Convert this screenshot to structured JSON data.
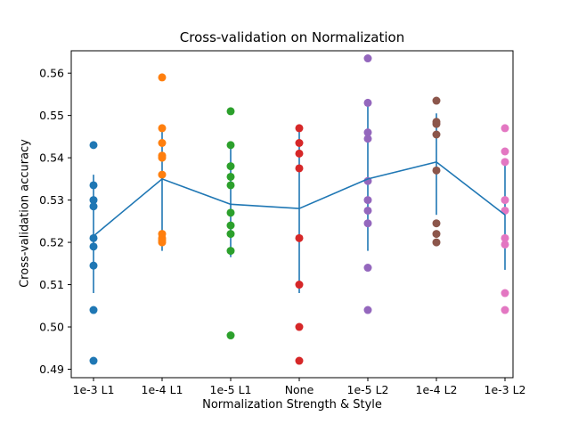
{
  "figure": {
    "title": "Cross-validation on Normalization",
    "xlabel": "Normalization Strength & Style",
    "ylabel": "Cross-validation accuracy"
  },
  "chart_data": {
    "type": "scatter",
    "title": "Cross-validation on Normalization",
    "xlabel": "Normalization Strength & Style",
    "ylabel": "Cross-validation accuracy",
    "grid": false,
    "legend": "none",
    "ylim": [
      0.488,
      0.5653
    ],
    "y_ticks": [
      0.49,
      0.5,
      0.51,
      0.52,
      0.53,
      0.54,
      0.55,
      0.56
    ],
    "categories": [
      "1e-3 L1",
      "1e-4 L1",
      "1e-5 L1",
      "None",
      "1e-5 L2",
      "1e-4 L2",
      "1e-3 L2"
    ],
    "line_color": "#1f77b4",
    "series": [
      {
        "name": "1e-3 L1",
        "color": "#1f77b4",
        "mean": 0.5215,
        "err_low": 0.508,
        "err_high": 0.536,
        "points": [
          0.543,
          0.5335,
          0.53,
          0.5285,
          0.521,
          0.519,
          0.5145,
          0.504,
          0.492
        ]
      },
      {
        "name": "1e-4 L1",
        "color": "#ff7f0e",
        "mean": 0.535,
        "err_low": 0.518,
        "err_high": 0.547,
        "points": [
          0.559,
          0.547,
          0.5435,
          0.5405,
          0.54,
          0.536,
          0.522,
          0.521,
          0.5205,
          0.52
        ]
      },
      {
        "name": "1e-5 L1",
        "color": "#2ca02c",
        "mean": 0.529,
        "err_low": 0.5165,
        "err_high": 0.543,
        "points": [
          0.551,
          0.543,
          0.538,
          0.5355,
          0.5335,
          0.527,
          0.524,
          0.522,
          0.518,
          0.498
        ]
      },
      {
        "name": "None",
        "color": "#d62728",
        "mean": 0.528,
        "err_low": 0.508,
        "err_high": 0.547,
        "points": [
          0.547,
          0.5435,
          0.541,
          0.5375,
          0.521,
          0.51,
          0.5,
          0.492
        ]
      },
      {
        "name": "1e-5 L2",
        "color": "#9467bd",
        "mean": 0.535,
        "err_low": 0.518,
        "err_high": 0.553,
        "points": [
          0.5635,
          0.553,
          0.546,
          0.5445,
          0.5345,
          0.53,
          0.5275,
          0.5245,
          0.514,
          0.504
        ]
      },
      {
        "name": "1e-4 L2",
        "color": "#8c564b",
        "mean": 0.539,
        "err_low": 0.5265,
        "err_high": 0.5505,
        "points": [
          0.5535,
          0.5485,
          0.548,
          0.5455,
          0.537,
          0.5245,
          0.522,
          0.52
        ]
      },
      {
        "name": "1e-3 L2",
        "color": "#e377c2",
        "mean": 0.5265,
        "err_low": 0.5135,
        "err_high": 0.539,
        "points": [
          0.547,
          0.5415,
          0.539,
          0.53,
          0.5275,
          0.521,
          0.5195,
          0.508,
          0.504
        ]
      }
    ]
  }
}
